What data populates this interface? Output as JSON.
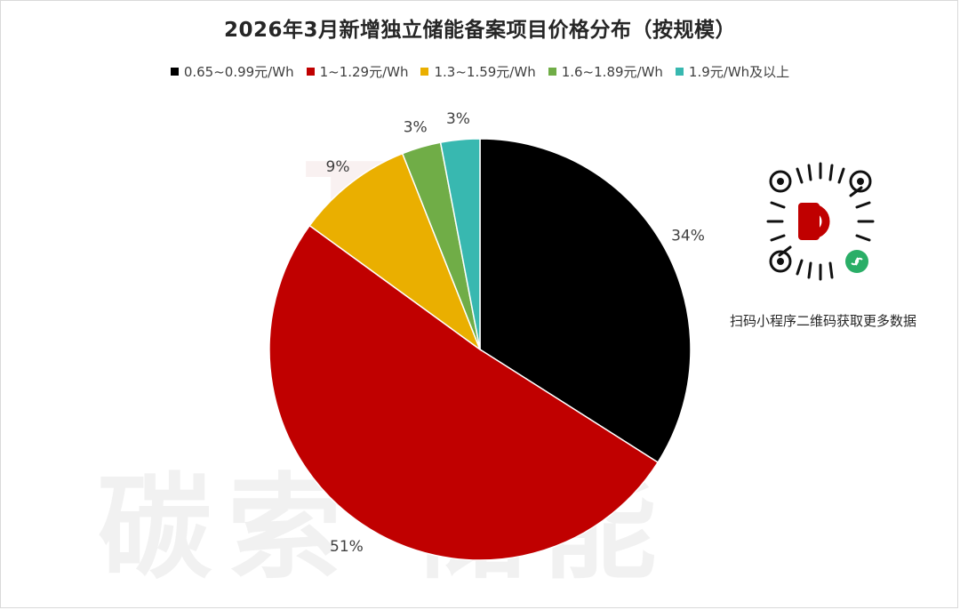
{
  "chart_data": {
    "type": "pie",
    "title": "2026年3月新增独立储能备案项目价格分布（按规模）",
    "categories": [
      "0.65~0.99元/Wh",
      "1~1.29元/Wh",
      "1.3~1.59元/Wh",
      "1.6~1.89元/Wh",
      "1.9元/Wh及以上"
    ],
    "values": [
      34,
      51,
      9,
      3,
      3
    ],
    "value_labels": [
      "34%",
      "51%",
      "9%",
      "3%",
      "3%"
    ],
    "colors": [
      "#000000",
      "#c00000",
      "#eaaf00",
      "#70ad47",
      "#38b8b0"
    ],
    "legend_position": "top",
    "start_angle_deg": 0,
    "direction": "clockwise"
  },
  "qr": {
    "icon": "qr-code-icon",
    "caption": "扫码小程序二维码获取更多数据"
  },
  "watermark": {
    "text": "碳索 储能"
  }
}
